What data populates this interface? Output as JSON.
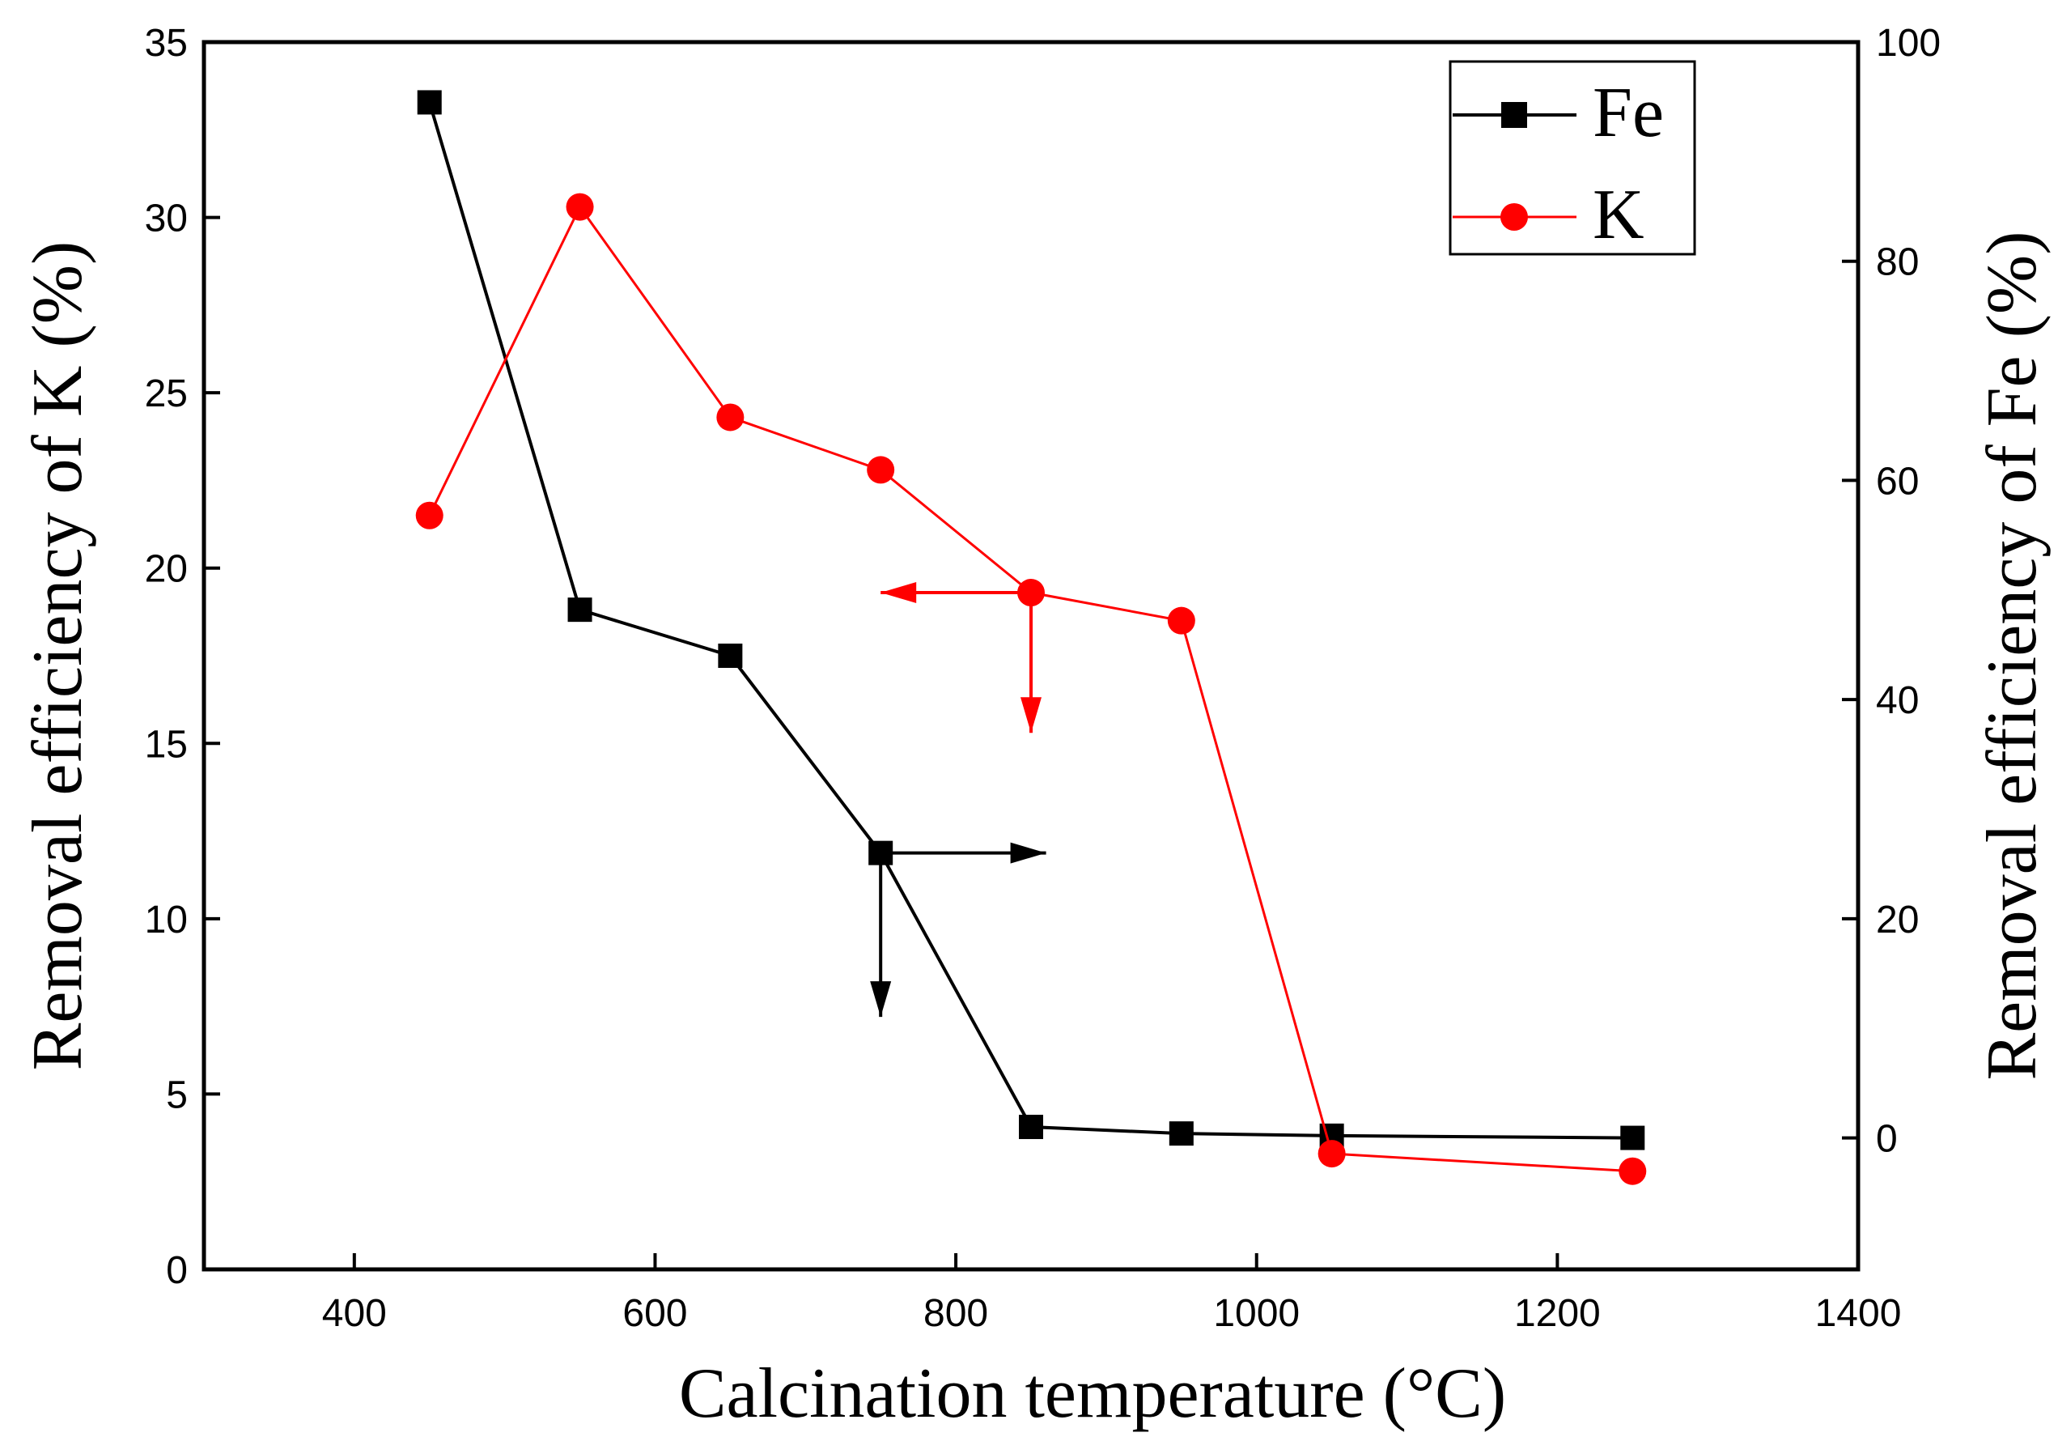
{
  "chart_data": {
    "type": "line",
    "title": "",
    "xlabel": "Calcination temperature (°C)",
    "ylabel_left": "Removal efficiency of  K (%)",
    "ylabel_right": "Removal efficiency of  Fe (%)",
    "xlim": [
      300,
      1400
    ],
    "ylim_left": [
      0,
      35
    ],
    "ylim_right": [
      -12,
      100
    ],
    "x_ticks": [
      400,
      600,
      800,
      1000,
      1200,
      1400
    ],
    "y_left_ticks": [
      0,
      5,
      10,
      15,
      20,
      25,
      30,
      35
    ],
    "y_right_ticks": [
      0,
      20,
      40,
      60,
      80,
      100
    ],
    "grid": false,
    "legend_position": "top-right",
    "series": [
      {
        "name": "Fe",
        "axis": "right",
        "color": "#000000",
        "marker": "square",
        "x": [
          450,
          550,
          650,
          750,
          850,
          950,
          1050,
          1250
        ],
        "values": [
          94.5,
          48.2,
          44.0,
          26.0,
          1.0,
          0.4,
          0.2,
          0.0
        ]
      },
      {
        "name": "K",
        "axis": "left",
        "color": "#ff0000",
        "marker": "circle",
        "x": [
          450,
          550,
          650,
          750,
          850,
          950,
          1050,
          1250
        ],
        "values": [
          21.5,
          30.3,
          24.3,
          22.8,
          19.3,
          18.5,
          3.3,
          2.8
        ]
      }
    ],
    "annotations": [
      {
        "series": "K",
        "at_x": 850,
        "direction": "left",
        "to_x": 750,
        "meaning": "points to left axis",
        "color": "#ff0000"
      },
      {
        "series": "K",
        "at_x": 850,
        "direction": "down",
        "to_y": 15.3,
        "color": "#ff0000"
      },
      {
        "series": "Fe",
        "at_x": 750,
        "direction": "right",
        "to_x": 860,
        "meaning": "points to right axis",
        "color": "#000000"
      },
      {
        "series": "Fe",
        "at_x": 750,
        "direction": "down",
        "to_y": 7.2,
        "color": "#000000"
      }
    ]
  }
}
